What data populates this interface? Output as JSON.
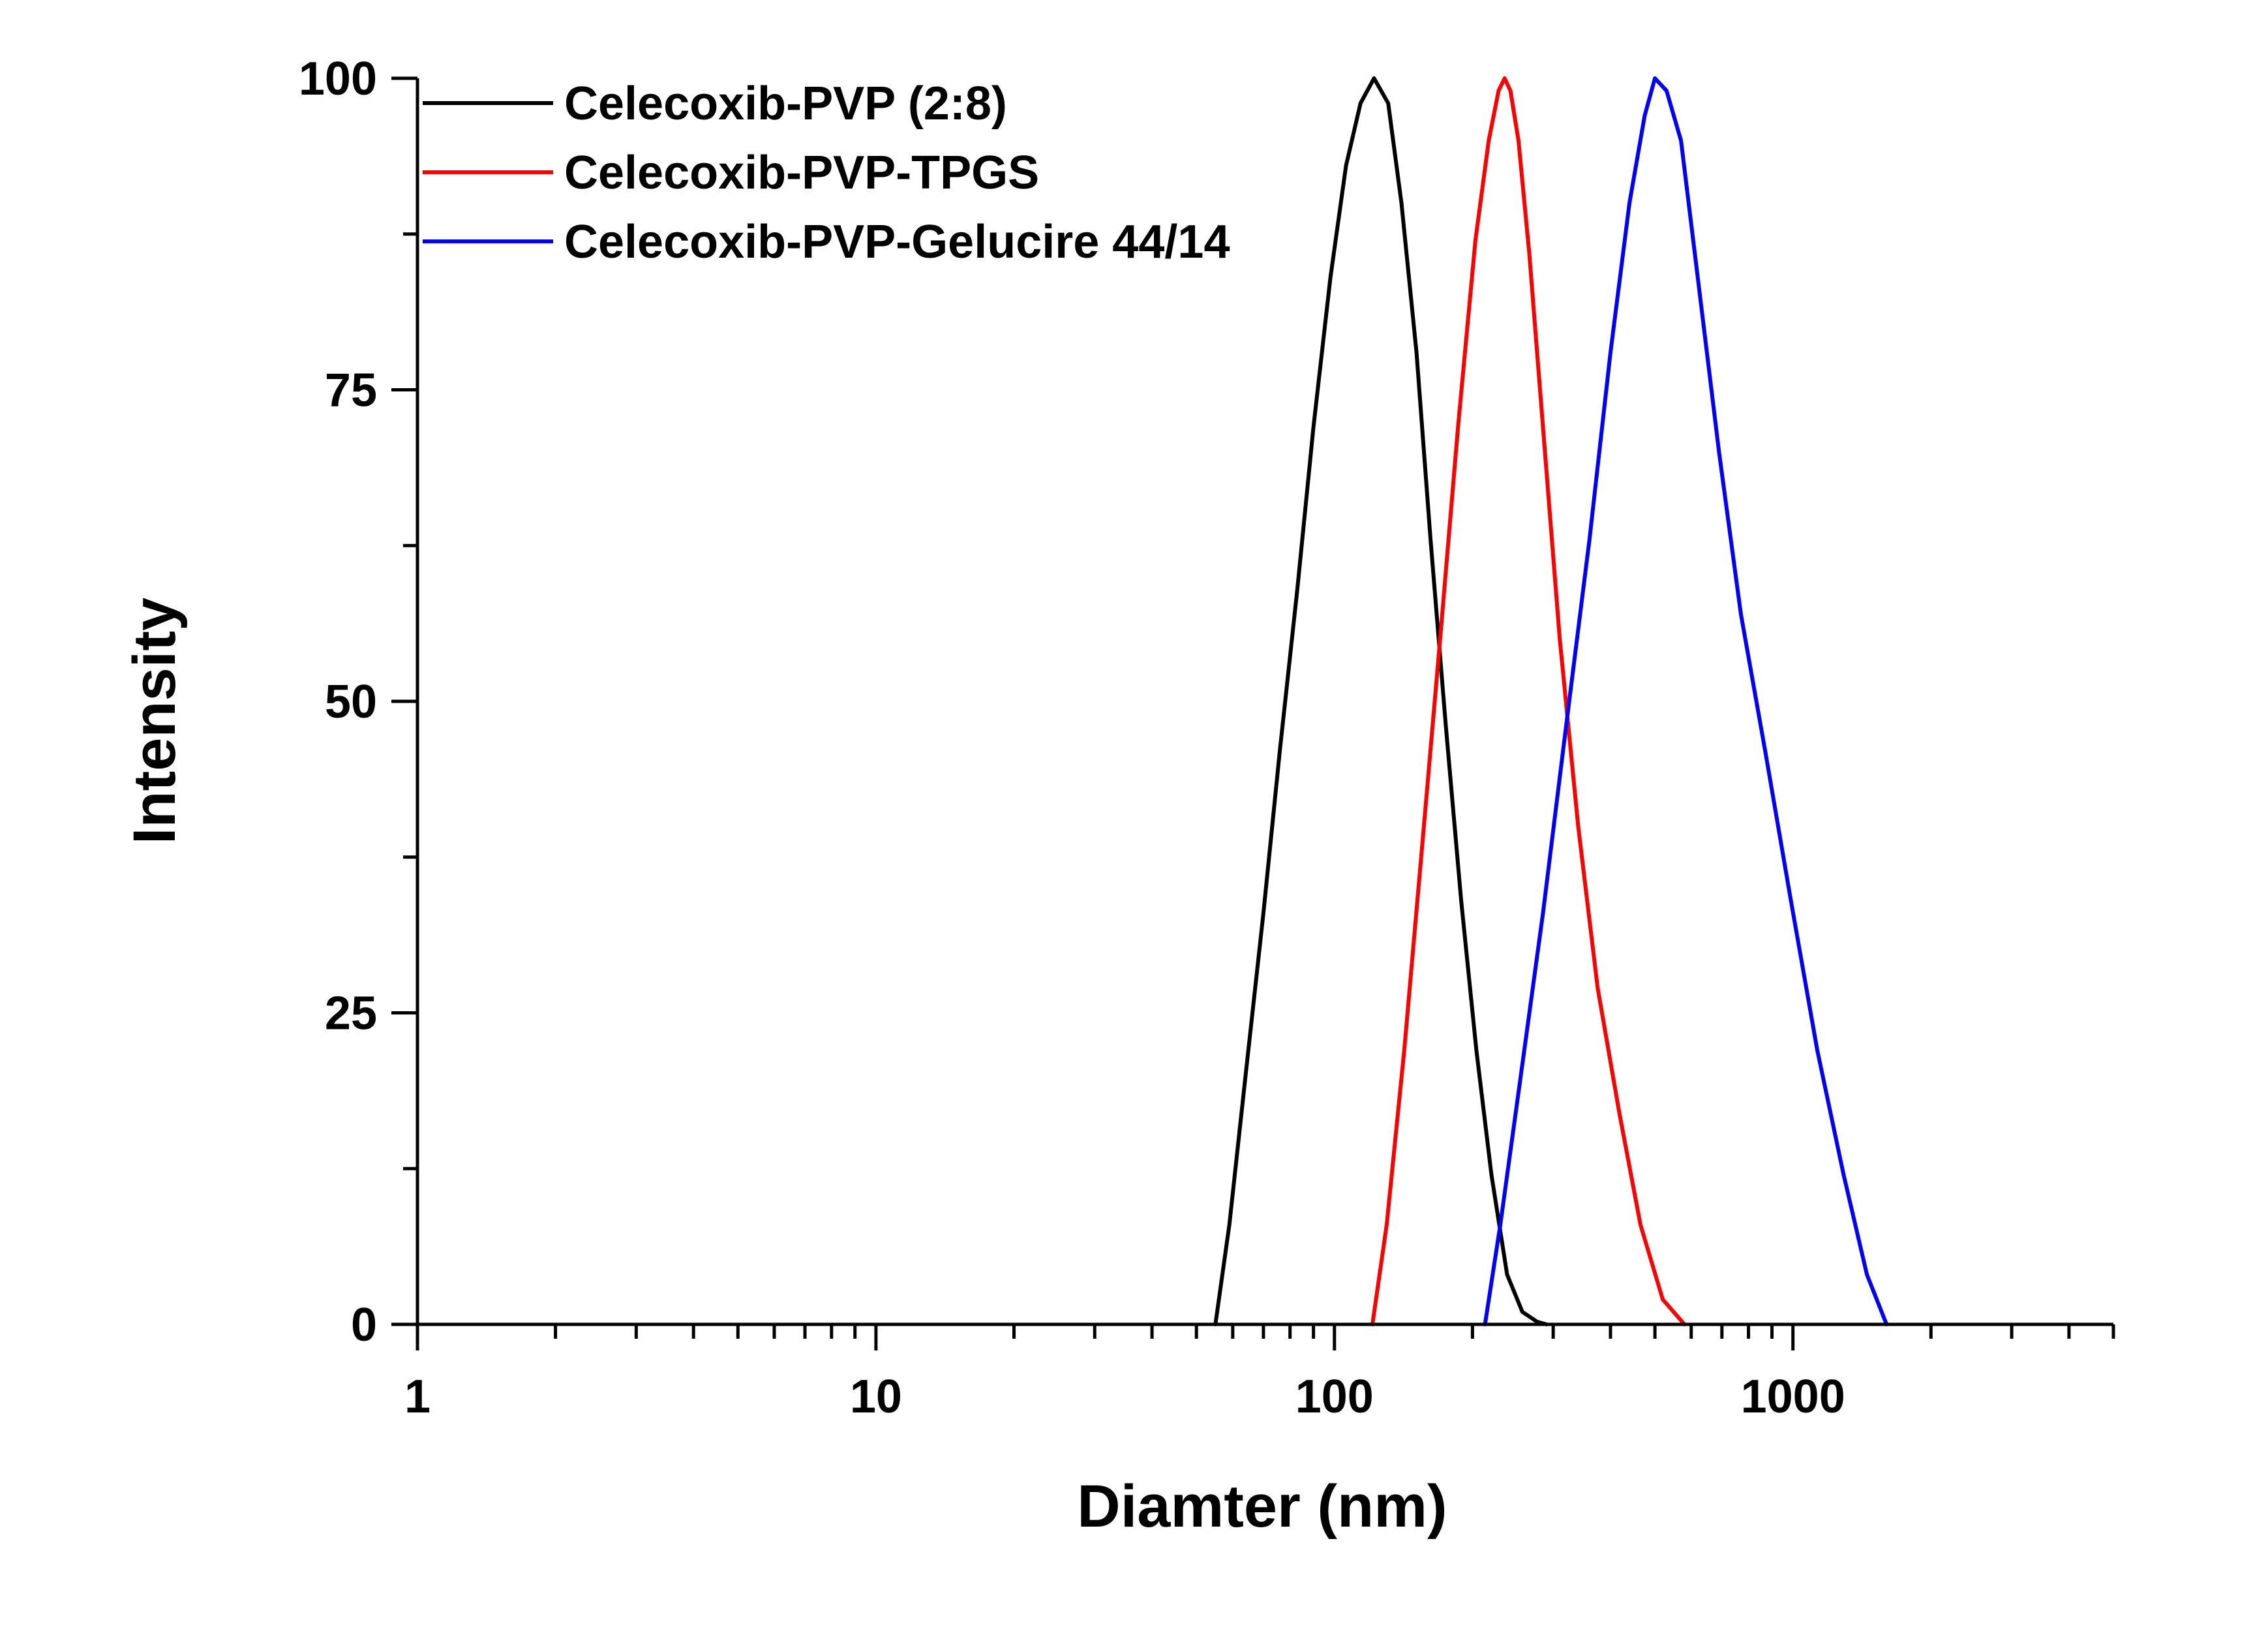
{
  "chart_data": {
    "type": "line",
    "title": "",
    "xlabel": "Diamter (nm)",
    "ylabel": "Intensity",
    "xscale": "log",
    "xlim": [
      1,
      5000
    ],
    "ylim": [
      0,
      100
    ],
    "grid": false,
    "legend_position": "top-left",
    "x_ticks": [
      {
        "value": 1,
        "label": "1"
      },
      {
        "value": 10,
        "label": "10"
      },
      {
        "value": 100,
        "label": "100"
      },
      {
        "value": 1000,
        "label": "1000"
      }
    ],
    "y_ticks": [
      {
        "value": 0,
        "label": "0"
      },
      {
        "value": 25,
        "label": "25"
      },
      {
        "value": 50,
        "label": "50"
      },
      {
        "value": 75,
        "label": "75"
      },
      {
        "value": 100,
        "label": "100"
      }
    ],
    "y_minor_ticks": [
      12.5,
      37.5,
      62.5,
      87.5
    ],
    "series": [
      {
        "name": "Celecoxib-PVP (2:8)",
        "color": "#000000",
        "x": [
          55,
          59,
          64,
          70,
          76,
          83,
          90,
          98,
          106,
          114,
          122,
          131,
          140,
          151,
          162,
          175,
          189,
          204,
          220,
          238,
          257,
          277,
          290
        ],
        "y": [
          0,
          8,
          20,
          33,
          46,
          59,
          72,
          84,
          93,
          98,
          100,
          98,
          90,
          78,
          63,
          48,
          34,
          22,
          12,
          4,
          1,
          0.2,
          0
        ]
      },
      {
        "name": "Celecoxib-PVP-TPGS",
        "color": "#ff0000",
        "x": [
          121,
          130,
          142,
          155,
          170,
          186,
          203,
          217,
          228,
          235,
          242,
          252,
          266,
          285,
          310,
          340,
          375,
          418,
          465,
          520,
          580
        ],
        "y": [
          0,
          8,
          22,
          38,
          55,
          72,
          87,
          95,
          99,
          100,
          99,
          95,
          86,
          72,
          55,
          40,
          27,
          17,
          8,
          2,
          0
        ]
      },
      {
        "name": "Celecoxib-PVP-Gelucire 44/14",
        "color": "#0000ff",
        "x": [
          213,
          230,
          255,
          285,
          320,
          360,
          400,
          440,
          475,
          500,
          530,
          570,
          620,
          690,
          770,
          870,
          990,
          1130,
          1290,
          1450,
          1600
        ],
        "y": [
          0,
          8,
          20,
          33,
          48,
          63,
          78,
          90,
          97,
          100,
          99,
          95,
          84,
          70,
          57,
          46,
          34,
          22,
          12,
          4,
          0
        ]
      }
    ]
  }
}
